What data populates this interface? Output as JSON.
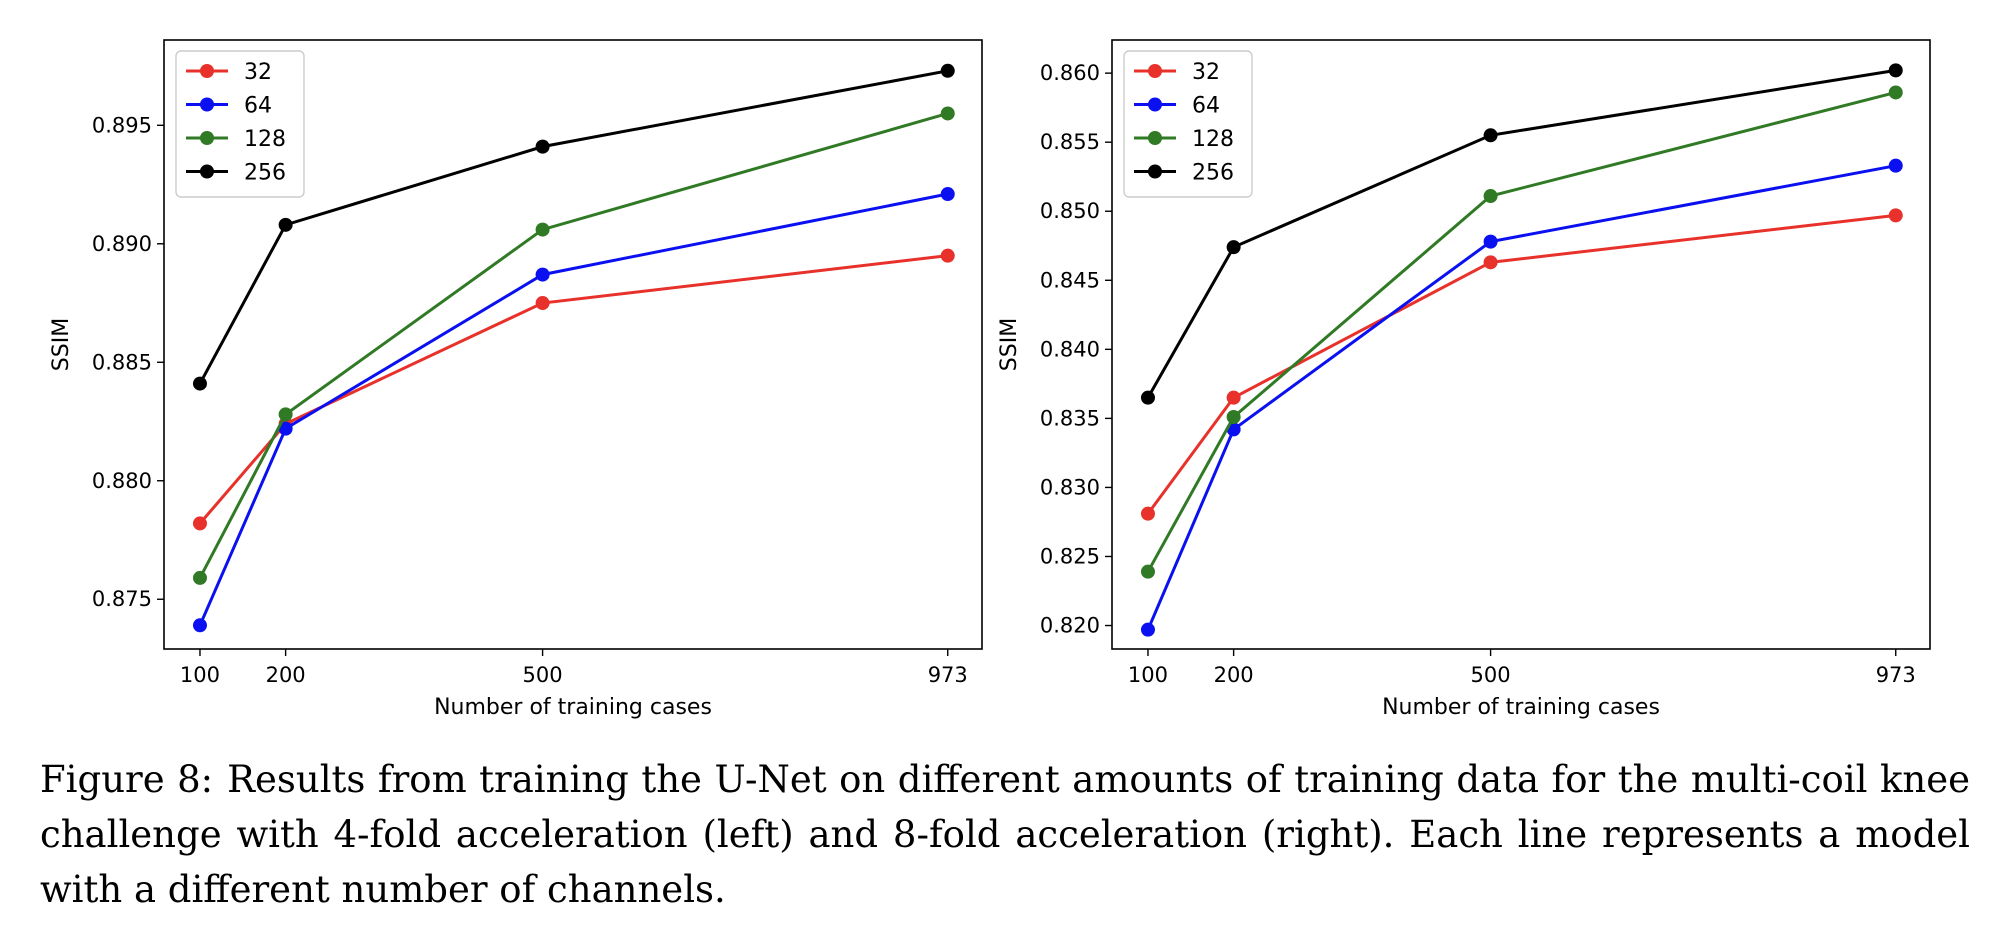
{
  "chart_data": [
    {
      "type": "line",
      "title": "",
      "xlabel": "Number of training cases",
      "ylabel": "SSIM",
      "x": [
        100,
        200,
        500,
        973
      ],
      "x_ticks": [
        "100",
        "200",
        "500",
        "973"
      ],
      "xlim": [
        58,
        1013
      ],
      "ylim": [
        0.8729,
        0.8986
      ],
      "y_ticks": [
        "0.875",
        "0.880",
        "0.885",
        "0.890",
        "0.895"
      ],
      "y_tick_values": [
        0.875,
        0.88,
        0.885,
        0.89,
        0.895
      ],
      "legend_position": "top-left",
      "grid": false,
      "series": [
        {
          "name": "32",
          "color": "#e8312a",
          "values": [
            0.8782,
            0.8824,
            0.8875,
            0.8895
          ]
        },
        {
          "name": "64",
          "color": "#0a10f0",
          "values": [
            0.8739,
            0.8822,
            0.8887,
            0.8921
          ]
        },
        {
          "name": "128",
          "color": "#317a25",
          "values": [
            0.8759,
            0.8828,
            0.8906,
            0.8955
          ]
        },
        {
          "name": "256",
          "color": "#000000",
          "values": [
            0.8841,
            0.8908,
            0.8941,
            0.8973
          ]
        }
      ]
    },
    {
      "type": "line",
      "title": "",
      "xlabel": "Number of training cases",
      "ylabel": "SSIM",
      "x": [
        100,
        200,
        500,
        973
      ],
      "x_ticks": [
        "100",
        "200",
        "500",
        "973"
      ],
      "xlim": [
        58,
        1013
      ],
      "ylim": [
        0.8183,
        0.8624
      ],
      "y_ticks": [
        "0.820",
        "0.825",
        "0.830",
        "0.835",
        "0.840",
        "0.845",
        "0.850",
        "0.855",
        "0.860"
      ],
      "y_tick_values": [
        0.82,
        0.825,
        0.83,
        0.835,
        0.84,
        0.845,
        0.85,
        0.855,
        0.86
      ],
      "legend_position": "top-left",
      "grid": false,
      "series": [
        {
          "name": "32",
          "color": "#e8312a",
          "values": [
            0.8281,
            0.8365,
            0.8463,
            0.8497
          ]
        },
        {
          "name": "64",
          "color": "#0a10f0",
          "values": [
            0.8197,
            0.8342,
            0.8478,
            0.8533
          ]
        },
        {
          "name": "128",
          "color": "#317a25",
          "values": [
            0.8239,
            0.8351,
            0.8511,
            0.8586
          ]
        },
        {
          "name": "256",
          "color": "#000000",
          "values": [
            0.8365,
            0.8474,
            0.8555,
            0.8602
          ]
        }
      ]
    }
  ],
  "caption": {
    "label": "Figure 8:",
    "text": "Results from training the U-Net on different amounts of training data for the multi-coil knee challenge with 4-fold acceleration (left) and 8-fold acceleration (right). Each line represents a model with a different number of channels."
  }
}
